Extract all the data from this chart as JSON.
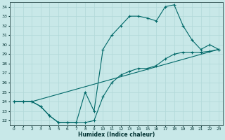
{
  "xlabel": "Humidex (Indice chaleur)",
  "background_color": "#c8e8e8",
  "grid_color": "#b0d8d8",
  "line_color": "#006868",
  "xlim": [
    -0.5,
    23.5
  ],
  "ylim": [
    21.5,
    34.5
  ],
  "xticks": [
    0,
    1,
    2,
    3,
    4,
    5,
    6,
    7,
    8,
    9,
    10,
    11,
    12,
    13,
    14,
    15,
    16,
    17,
    18,
    19,
    20,
    21,
    22,
    23
  ],
  "yticks": [
    22,
    23,
    24,
    25,
    26,
    27,
    28,
    29,
    30,
    31,
    32,
    33,
    34
  ],
  "line1_x": [
    0,
    1,
    2,
    3,
    4,
    5,
    6,
    7,
    8,
    9,
    10,
    11,
    12,
    13,
    14,
    15,
    16,
    17,
    18,
    19,
    20,
    21,
    22,
    23
  ],
  "line1_y": [
    24.0,
    24.0,
    24.0,
    23.5,
    22.5,
    21.8,
    21.8,
    21.8,
    21.8,
    22.0,
    24.5,
    26.0,
    26.8,
    27.2,
    27.5,
    27.5,
    27.8,
    28.5,
    29.0,
    29.2,
    29.2,
    29.2,
    29.3,
    29.5
  ],
  "line2_x": [
    0,
    1,
    2,
    3,
    4,
    5,
    6,
    7,
    8,
    9,
    10,
    11,
    12,
    13,
    14,
    15,
    16,
    17,
    18,
    19,
    20,
    21,
    22,
    23
  ],
  "line2_y": [
    24.0,
    24.0,
    24.0,
    23.5,
    22.5,
    21.8,
    21.8,
    21.8,
    25.0,
    23.0,
    29.5,
    31.0,
    32.0,
    33.0,
    33.0,
    32.8,
    32.5,
    34.0,
    34.2,
    32.0,
    30.5,
    29.5,
    30.0,
    29.5
  ],
  "line3_x": [
    0,
    2,
    23
  ],
  "line3_y": [
    24.0,
    24.0,
    29.5
  ]
}
